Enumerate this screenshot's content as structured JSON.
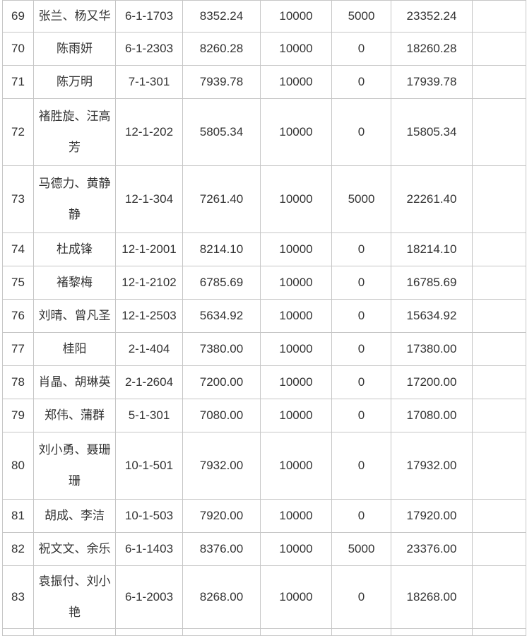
{
  "table": {
    "column_keys": [
      "no",
      "name",
      "unit",
      "amount",
      "fixed",
      "extra",
      "total",
      "blank"
    ],
    "rows": [
      {
        "no": "69",
        "name": "张兰、杨又华",
        "unit": "6-1-1703",
        "amount": "8352.24",
        "fixed": "10000",
        "extra": "5000",
        "total": "23352.24",
        "blank": ""
      },
      {
        "no": "70",
        "name": "陈雨妍",
        "unit": "6-1-2303",
        "amount": "8260.28",
        "fixed": "10000",
        "extra": "0",
        "total": "18260.28",
        "blank": ""
      },
      {
        "no": "71",
        "name": "陈万明",
        "unit": "7-1-301",
        "amount": "7939.78",
        "fixed": "10000",
        "extra": "0",
        "total": "17939.78",
        "blank": ""
      },
      {
        "no": "72",
        "name": "褚胜旋、汪高芳",
        "unit": "12-1-202",
        "amount": "5805.34",
        "fixed": "10000",
        "extra": "0",
        "total": "15805.34",
        "blank": ""
      },
      {
        "no": "73",
        "name": "马德力、黄静静",
        "unit": "12-1-304",
        "amount": "7261.40",
        "fixed": "10000",
        "extra": "5000",
        "total": "22261.40",
        "blank": ""
      },
      {
        "no": "74",
        "name": "杜成锋",
        "unit": "12-1-2001",
        "amount": "8214.10",
        "fixed": "10000",
        "extra": "0",
        "total": "18214.10",
        "blank": ""
      },
      {
        "no": "75",
        "name": "褚黎梅",
        "unit": "12-1-2102",
        "amount": "6785.69",
        "fixed": "10000",
        "extra": "0",
        "total": "16785.69",
        "blank": ""
      },
      {
        "no": "76",
        "name": "刘晴、曾凡圣",
        "unit": "12-1-2503",
        "amount": "5634.92",
        "fixed": "10000",
        "extra": "0",
        "total": "15634.92",
        "blank": ""
      },
      {
        "no": "77",
        "name": "桂阳",
        "unit": "2-1-404",
        "amount": "7380.00",
        "fixed": "10000",
        "extra": "0",
        "total": "17380.00",
        "blank": ""
      },
      {
        "no": "78",
        "name": "肖晶、胡琳英",
        "unit": "2-1-2604",
        "amount": "7200.00",
        "fixed": "10000",
        "extra": "0",
        "total": "17200.00",
        "blank": ""
      },
      {
        "no": "79",
        "name": "郑伟、蒲群",
        "unit": "5-1-301",
        "amount": "7080.00",
        "fixed": "10000",
        "extra": "0",
        "total": "17080.00",
        "blank": ""
      },
      {
        "no": "80",
        "name": "刘小勇、聂珊珊",
        "unit": "10-1-501",
        "amount": "7932.00",
        "fixed": "10000",
        "extra": "0",
        "total": "17932.00",
        "blank": ""
      },
      {
        "no": "81",
        "name": "胡成、李洁",
        "unit": "10-1-503",
        "amount": "7920.00",
        "fixed": "10000",
        "extra": "0",
        "total": "17920.00",
        "blank": ""
      },
      {
        "no": "82",
        "name": "祝文文、余乐",
        "unit": "6-1-1403",
        "amount": "8376.00",
        "fixed": "10000",
        "extra": "5000",
        "total": "23376.00",
        "blank": ""
      },
      {
        "no": "83",
        "name": "袁振付、刘小艳",
        "unit": "6-1-2003",
        "amount": "8268.00",
        "fixed": "10000",
        "extra": "0",
        "total": "18268.00",
        "blank": ""
      }
    ]
  }
}
